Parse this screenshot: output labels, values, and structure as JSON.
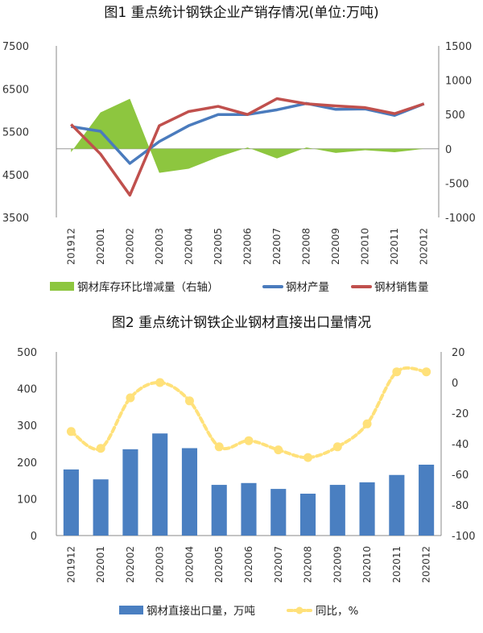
{
  "chart_data": [
    {
      "type": "line",
      "title": "图1  重点统计钢铁企业产销存情况(单位:万吨)",
      "categories": [
        "201912",
        "202001",
        "202002",
        "202003",
        "202004",
        "202005",
        "202006",
        "202007",
        "202008",
        "202009",
        "202010",
        "202011",
        "202012"
      ],
      "ylim": [
        3500,
        7500
      ],
      "yticks": [
        "7500",
        "6500",
        "5500",
        "4500",
        "3500"
      ],
      "y2lim": [
        -1000,
        1500
      ],
      "y2ticks": [
        "1500",
        "1000",
        "500",
        "0",
        "-500",
        "-1000"
      ],
      "series": [
        {
          "name": "钢材库存环比增减量（右轴）",
          "kind": "area",
          "axis": "right",
          "color": "#8dc63f",
          "values": [
            -50,
            530,
            730,
            -350,
            -290,
            -120,
            20,
            -140,
            20,
            -60,
            -20,
            -50,
            0
          ]
        },
        {
          "name": "钢材产量",
          "kind": "line",
          "axis": "left",
          "color": "#4a7bbd",
          "values": [
            5620,
            5510,
            4760,
            5270,
            5640,
            5900,
            5900,
            6010,
            6160,
            6020,
            6030,
            5880,
            6150
          ]
        },
        {
          "name": "钢材销售量",
          "kind": "line",
          "axis": "left",
          "color": "#c0504d",
          "values": [
            5670,
            4980,
            4020,
            5640,
            5970,
            6090,
            5900,
            6270,
            6150,
            6100,
            6060,
            5920,
            6150
          ]
        }
      ]
    },
    {
      "type": "bar",
      "title": "图2  重点统计钢铁企业钢材直接出口量情况",
      "categories": [
        "201912",
        "202001",
        "202002",
        "202003",
        "202004",
        "202005",
        "202006",
        "202007",
        "202008",
        "202009",
        "202010",
        "202011",
        "202012"
      ],
      "ylim": [
        0,
        500
      ],
      "yticks": [
        "500",
        "400",
        "300",
        "200",
        "100",
        "0"
      ],
      "y2lim": [
        -100,
        20
      ],
      "y2ticks": [
        "20",
        "0",
        "-20",
        "-40",
        "-60",
        "-80",
        "-100"
      ],
      "series": [
        {
          "name": "钢材直接出口量，万吨",
          "kind": "bar",
          "axis": "left",
          "color": "#4a7fc1",
          "values": [
            180,
            153,
            235,
            278,
            238,
            138,
            143,
            127,
            114,
            138,
            145,
            165,
            193
          ]
        },
        {
          "name": "同比，%",
          "kind": "smooth",
          "axis": "right",
          "color": "#ffe17a",
          "values": [
            -32,
            -43,
            -10,
            0,
            -12,
            -42,
            -38,
            -44,
            -49,
            -42,
            -27,
            7,
            7
          ]
        }
      ]
    }
  ]
}
